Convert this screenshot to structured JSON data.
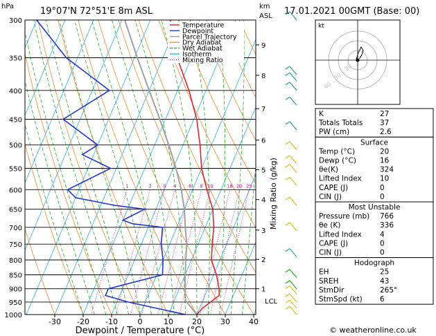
{
  "header": {
    "hpa_label": "hPa",
    "location": "19°07'N  72°51'E  8m  ASL",
    "km_label": "km",
    "asl_label": "ASL",
    "datetime": "17.01.2021  00GMT  (Base: 00)"
  },
  "chart_data": {
    "type": "line",
    "title": "",
    "xlabel": "Dewpoint / Temperature (°C)",
    "ylabel": "",
    "mixing_ratio_axis_label": "Mixing Ratio (g/kg)",
    "x_ticks": [
      -30,
      -20,
      -10,
      0,
      10,
      20,
      30,
      40
    ],
    "pressure_ticks": [
      300,
      350,
      400,
      450,
      500,
      550,
      600,
      650,
      700,
      750,
      800,
      850,
      900,
      950,
      1000
    ],
    "km_ticks": [
      {
        "label": "9",
        "p": 332
      },
      {
        "label": "8",
        "p": 376
      },
      {
        "label": "7",
        "p": 431
      },
      {
        "label": "6",
        "p": 490
      },
      {
        "label": "5",
        "p": 553
      },
      {
        "label": "4",
        "p": 625
      },
      {
        "label": "3",
        "p": 708
      },
      {
        "label": "2",
        "p": 798
      },
      {
        "label": "1",
        "p": 900
      }
    ],
    "lcl": {
      "label": "LCL",
      "p": 945
    },
    "mixing_ratio_labels": [
      "1",
      "2",
      "3",
      "4",
      "6",
      "8",
      "10",
      "16",
      "20",
      "25"
    ],
    "legend": [
      "Temperature",
      "Dewpoint",
      "Parcel Trajectory",
      "Dry Adiabat",
      "Wet Adiabat",
      "Isotherm",
      "Mixing Ratio"
    ],
    "colors": {
      "temperature": "#e8202a",
      "dewpoint": "#2035d8",
      "parcel": "#a0a0a0",
      "dry_adiabat": "#f28c28",
      "wet_adiabat": "#1fb01f",
      "isotherm": "#25b5ea",
      "mixing_ratio": "#e0148c"
    },
    "series": [
      {
        "name": "Temperature",
        "points": [
          {
            "p": 1000,
            "t": 20
          },
          {
            "p": 975,
            "t": 21
          },
          {
            "p": 950,
            "t": 23
          },
          {
            "p": 925,
            "t": 25
          },
          {
            "p": 900,
            "t": 24
          },
          {
            "p": 850,
            "t": 21
          },
          {
            "p": 800,
            "t": 17
          },
          {
            "p": 750,
            "t": 15
          },
          {
            "p": 700,
            "t": 13
          },
          {
            "p": 650,
            "t": 10
          },
          {
            "p": 600,
            "t": 5
          },
          {
            "p": 550,
            "t": 0
          },
          {
            "p": 500,
            "t": -4
          },
          {
            "p": 450,
            "t": -9
          },
          {
            "p": 400,
            "t": -16
          },
          {
            "p": 350,
            "t": -25
          },
          {
            "p": 300,
            "t": -33
          }
        ]
      },
      {
        "name": "Dewpoint",
        "points": [
          {
            "p": 1000,
            "t": 16
          },
          {
            "p": 975,
            "t": 5
          },
          {
            "p": 950,
            "t": -6
          },
          {
            "p": 925,
            "t": -15
          },
          {
            "p": 900,
            "t": -15
          },
          {
            "p": 850,
            "t": 2
          },
          {
            "p": 800,
            "t": 0
          },
          {
            "p": 750,
            "t": -3
          },
          {
            "p": 700,
            "t": -5
          },
          {
            "p": 690,
            "t": -16
          },
          {
            "p": 680,
            "t": -20
          },
          {
            "p": 650,
            "t": -14
          },
          {
            "p": 640,
            "t": -25
          },
          {
            "p": 620,
            "t": -40
          },
          {
            "p": 600,
            "t": -44
          },
          {
            "p": 550,
            "t": -32
          },
          {
            "p": 520,
            "t": -44
          },
          {
            "p": 500,
            "t": -40
          },
          {
            "p": 450,
            "t": -56
          },
          {
            "p": 400,
            "t": -44
          },
          {
            "p": 350,
            "t": -64
          },
          {
            "p": 300,
            "t": -80
          }
        ]
      },
      {
        "name": "Parcel Trajectory",
        "points": [
          {
            "p": 1000,
            "t": 20
          },
          {
            "p": 945,
            "t": 14
          },
          {
            "p": 900,
            "t": 12
          },
          {
            "p": 850,
            "t": 10
          },
          {
            "p": 800,
            "t": 8
          },
          {
            "p": 750,
            "t": 6
          },
          {
            "p": 700,
            "t": 3
          },
          {
            "p": 650,
            "t": 0
          },
          {
            "p": 600,
            "t": -4
          },
          {
            "p": 550,
            "t": -9
          },
          {
            "p": 500,
            "t": -15
          },
          {
            "p": 450,
            "t": -22
          },
          {
            "p": 400,
            "t": -30
          },
          {
            "p": 350,
            "t": -39
          },
          {
            "p": 300,
            "t": -49
          }
        ]
      }
    ]
  },
  "hodograph": {
    "label": "kt",
    "ring_labels": [
      "20",
      "30",
      "40"
    ]
  },
  "indices": [
    {
      "label": "K",
      "value": "27"
    },
    {
      "label": "Totals Totals",
      "value": "37"
    },
    {
      "label": "PW (cm)",
      "value": "2.6"
    }
  ],
  "surface": {
    "title": "Surface",
    "rows": [
      {
        "label": "Temp (°C)",
        "value": "20"
      },
      {
        "label": "Dewp (°C)",
        "value": "16"
      },
      {
        "label": "θe(K)",
        "value": "324"
      },
      {
        "label": "Lifted Index",
        "value": "10"
      },
      {
        "label": "CAPE (J)",
        "value": "0"
      },
      {
        "label": "CIN (J)",
        "value": "0"
      }
    ]
  },
  "most_unstable": {
    "title": "Most Unstable",
    "rows": [
      {
        "label": "Pressure (mb)",
        "value": "766"
      },
      {
        "label": "θe (K)",
        "value": "336"
      },
      {
        "label": "Lifted Index",
        "value": "4"
      },
      {
        "label": "CAPE (J)",
        "value": "0"
      },
      {
        "label": "CIN (J)",
        "value": "0"
      }
    ]
  },
  "hodograph_table": {
    "title": "Hodograph",
    "rows": [
      {
        "label": "EH",
        "value": "25"
      },
      {
        "label": "SREH",
        "value": "43"
      },
      {
        "label": "StmDir",
        "value": "265°"
      },
      {
        "label": "StmSpd (kt)",
        "value": "6"
      }
    ]
  },
  "footer": {
    "copyright": "© weatheronline.co.uk"
  }
}
